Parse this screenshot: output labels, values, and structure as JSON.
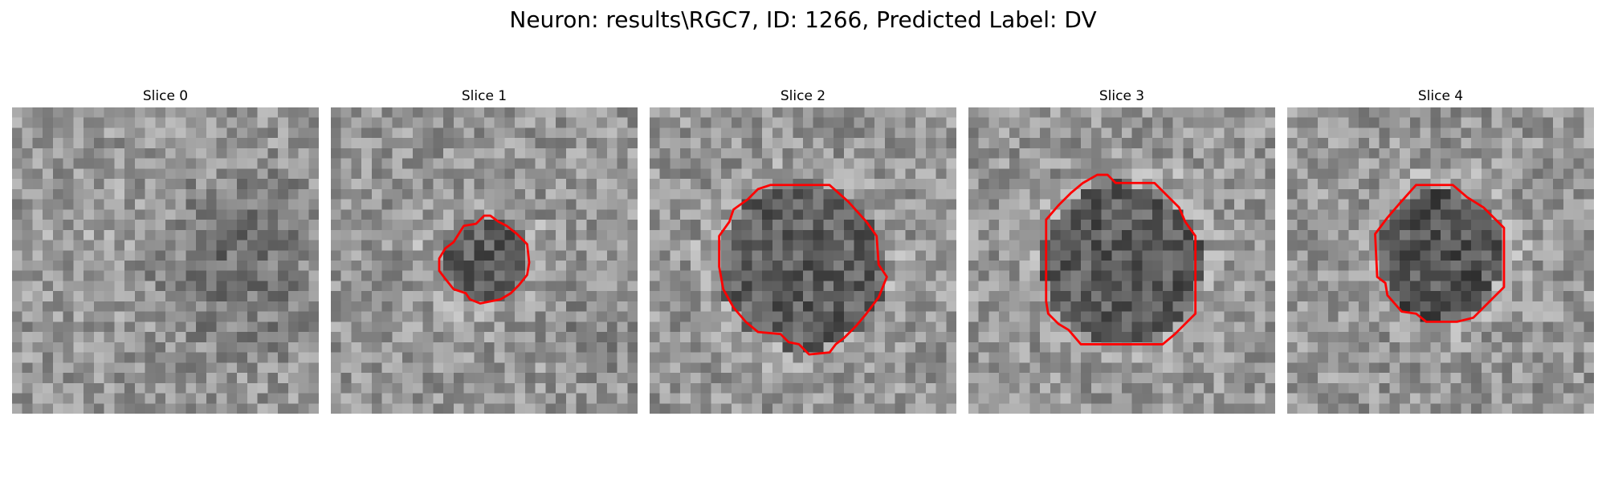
{
  "figure": {
    "title": "Neuron: results\\RGC7, ID: 1266, Predicted Label: DV"
  },
  "slices": [
    {
      "label": "Slice 0",
      "has_contour": false
    },
    {
      "label": "Slice 1",
      "has_contour": true
    },
    {
      "label": "Slice 2",
      "has_contour": true
    },
    {
      "label": "Slice 3",
      "has_contour": true
    },
    {
      "label": "Slice 4",
      "has_contour": true
    }
  ],
  "colors": {
    "contour": "#ff0000",
    "background": "#ffffff"
  },
  "image": {
    "colormap": "gray",
    "grid_cells": 30
  }
}
